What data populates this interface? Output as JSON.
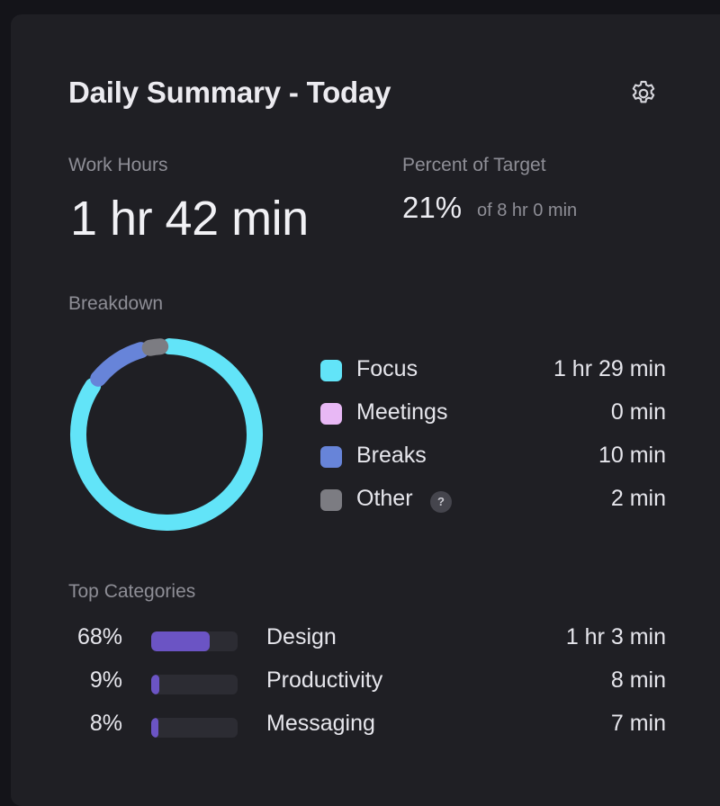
{
  "header": {
    "title": "Daily Summary - Today",
    "settings_icon": "gear-icon"
  },
  "work_hours": {
    "label": "Work Hours",
    "value": "1 hr 42 min"
  },
  "target": {
    "label": "Percent of Target",
    "percent": "21%",
    "of_text": "of 8 hr 0 min"
  },
  "breakdown": {
    "label": "Breakdown",
    "items": [
      {
        "name": "Focus",
        "value": "1 hr 29 min",
        "minutes": 89,
        "color": "#62e4f8"
      },
      {
        "name": "Meetings",
        "value": "0 min",
        "minutes": 0,
        "color": "#e8b8f5"
      },
      {
        "name": "Breaks",
        "value": "10 min",
        "minutes": 10,
        "color": "#6784d9"
      },
      {
        "name": "Other",
        "value": "2 min",
        "minutes": 2,
        "color": "#7c7c82",
        "help": "?"
      }
    ]
  },
  "top_categories": {
    "label": "Top Categories",
    "items": [
      {
        "percent_label": "68%",
        "fraction": 0.68,
        "name": "Design",
        "value": "1 hr 3 min"
      },
      {
        "percent_label": "9%",
        "fraction": 0.09,
        "name": "Productivity",
        "value": "8 min"
      },
      {
        "percent_label": "8%",
        "fraction": 0.08,
        "name": "Messaging",
        "value": "7 min"
      }
    ],
    "bar_color": "#6b54c4"
  }
}
